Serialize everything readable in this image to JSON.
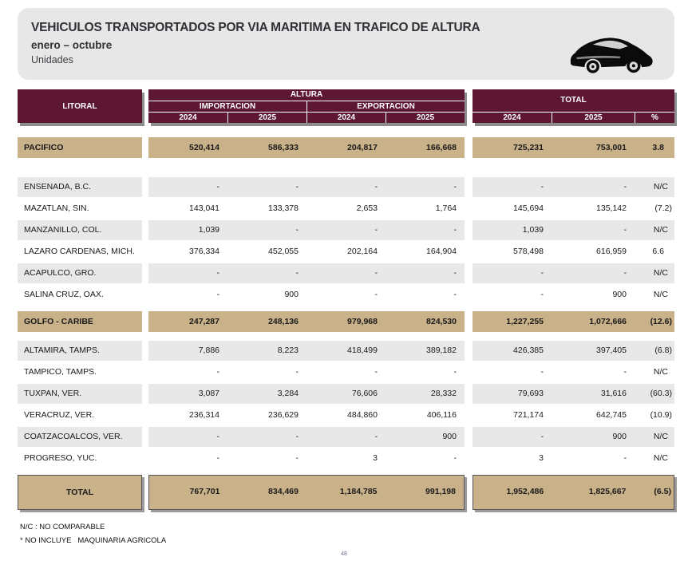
{
  "title": {
    "line1": "VEHICULOS TRANSPORTADOS POR VIA MARITIMA EN TRAFICO DE ALTURA",
    "line2": "enero – octubre",
    "line3": "Unidades"
  },
  "colors": {
    "maroon": "#5E1733",
    "tan": "#C9B189",
    "gray_row": "#E9E8E8",
    "card_bg": "#E7E7E7",
    "car_icon": "#0b0b0b"
  },
  "table": {
    "header": {
      "litoral": "LITORAL",
      "altura": "ALTURA",
      "importacion": "IMPORTACION",
      "exportacion": "EXPORTACION",
      "total": "TOTAL",
      "imp_2024": "2024",
      "imp_2025": "2025",
      "exp_2024": "2024",
      "exp_2025": "2025",
      "tot_2024": "2024",
      "tot_2025": "2025",
      "pct": "%"
    },
    "rows": [
      {
        "label": "PACIFICO",
        "variant": "section",
        "gap_before": 18,
        "values": [
          "520,414",
          "586,333",
          "204,817",
          "166,668",
          "725,231",
          "753,001",
          "3.8"
        ]
      },
      {
        "label": "ENSENADA, B.C.",
        "variant": "gray",
        "gap_before": 24,
        "values": [
          "-",
          "-",
          "-",
          "-",
          "-",
          "-",
          "N/C"
        ]
      },
      {
        "label": "MAZATLAN, SIN.",
        "variant": "white",
        "values": [
          "143,041",
          "133,378",
          "2,653",
          "1,764",
          "145,694",
          "135,142",
          "(7.2)"
        ]
      },
      {
        "label": "MANZANILLO, COL.",
        "variant": "gray",
        "values": [
          "1,039",
          "-",
          "-",
          "-",
          "1,039",
          "-",
          "N/C"
        ]
      },
      {
        "label": "LAZARO CARDENAS, MICH.",
        "variant": "white",
        "values": [
          "376,334",
          "452,055",
          "202,164",
          "164,904",
          "578,498",
          "616,959",
          "6.6"
        ]
      },
      {
        "label": "ACAPULCO, GRO.",
        "variant": "gray",
        "values": [
          "-",
          "-",
          "-",
          "-",
          "-",
          "-",
          "N/C"
        ]
      },
      {
        "label": "SALINA CRUZ, OAX.",
        "variant": "white",
        "values": [
          "-",
          "900",
          "-",
          "-",
          "-",
          "900",
          "N/C"
        ]
      },
      {
        "label": "GOLFO - CARIBE",
        "variant": "section",
        "gap_before": 8,
        "values": [
          "247,287",
          "248,136",
          "979,968",
          "824,530",
          "1,227,255",
          "1,072,666",
          "(12.6)"
        ]
      },
      {
        "label": "ALTAMIRA, TAMPS.",
        "variant": "gray",
        "gap_before": 11,
        "values": [
          "7,886",
          "8,223",
          "418,499",
          "389,182",
          "426,385",
          "397,405",
          "(6.8)"
        ]
      },
      {
        "label": "TAMPICO, TAMPS.",
        "variant": "white",
        "values": [
          "-",
          "-",
          "-",
          "-",
          "-",
          "-",
          "N/C"
        ]
      },
      {
        "label": "TUXPAN, VER.",
        "variant": "gray",
        "values": [
          "3,087",
          "3,284",
          "76,606",
          "28,332",
          "79,693",
          "31,616",
          "(60.3)"
        ]
      },
      {
        "label": "VERACRUZ, VER.",
        "variant": "white",
        "values": [
          "236,314",
          "236,629",
          "484,860",
          "406,116",
          "721,174",
          "642,745",
          "(10.9)"
        ]
      },
      {
        "label": "COATZACOALCOS, VER.",
        "variant": "gray",
        "values": [
          "-",
          "-",
          "-",
          "900",
          "-",
          "900",
          "N/C"
        ]
      },
      {
        "label": "PROGRESO, YUC.",
        "variant": "white",
        "values": [
          "-",
          "-",
          "3",
          "-",
          "3",
          "-",
          "N/C"
        ]
      },
      {
        "label": "TOTAL",
        "variant": "total",
        "gap_before": 8,
        "values": [
          "767,701",
          "834,469",
          "1,184,785",
          "991,198",
          "1,952,486",
          "1,825,667",
          "(6.5)"
        ]
      }
    ]
  },
  "footnotes": {
    "nc": "N/C : NO COMPARABLE",
    "agricola": "* NO INCLUYE   MAQUINARIA AGRICOLA"
  },
  "page_number": "48"
}
